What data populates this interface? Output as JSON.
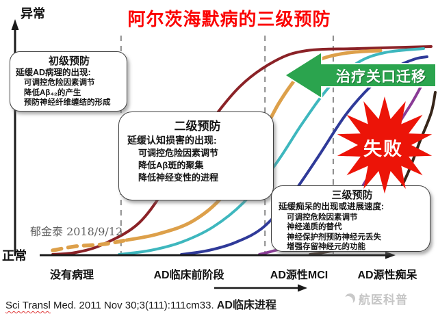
{
  "title": "阿尔茨海默病的三级预防",
  "axes": {
    "y_top_label": "异常",
    "y_bottom_label": "正常",
    "x_stage_labels": [
      "没有病理",
      "AD临床前阶段",
      "AD源性MCI",
      "AD源性痴呆"
    ]
  },
  "prevention_boxes": [
    {
      "title": "初级预防",
      "subtitle": "延缓AD病理的出现:",
      "items": [
        "可调控危险因素调节",
        "降低Aβ₄₂的产生",
        "预防神经纤维缠结的形成"
      ]
    },
    {
      "title": "二级预防",
      "subtitle": "延缓认知损害的出现:",
      "items": [
        "可调控危险因素调节",
        "降低Aβ斑的聚集",
        "降低神经变性的进程"
      ]
    },
    {
      "title": "三级预防",
      "subtitle": "延缓痴呆的出现或进展速度:",
      "items": [
        "可调控危险因素调节",
        "神经递质的替代",
        "神经保护剂预防神经元丢失",
        "增强存留神经元的功能"
      ]
    }
  ],
  "annotations": {
    "treatment_arrow_label": "治疗关口迁移",
    "failure_label": "失败",
    "author_watermark": "郁金泰 2018/9/12",
    "brand_watermark": "航医科普",
    "citation_underlined": "Sci Transl",
    "citation_rest": " Med. 2011 Nov 30;3(111):111cm33. ",
    "progression_label": "AD临床进程"
  },
  "colors": {
    "title_red": "#fb0202",
    "arrow_green": "#2ba44e",
    "burst_red": "#ec1408",
    "axis_black": "#1a1a1a",
    "boundary_gray": "#8a8a8a"
  },
  "chart_data": {
    "type": "line",
    "title": "阿尔茨海默病的三级预防",
    "xlabel": "AD临床进程",
    "ylabel_top": "异常",
    "ylabel_bottom": "正常",
    "x_range": [
      0,
      100
    ],
    "y_range": [
      0,
      100
    ],
    "grid": false,
    "legend": "none",
    "stages": [
      "没有病理",
      "AD临床前阶段",
      "AD源性MCI",
      "AD源性痴呆"
    ],
    "stage_boundaries_x": [
      20.5,
      57.4,
      74.9
    ],
    "series": [
      {
        "name": "curve-dark-red",
        "color": "#8b2227",
        "style": "solid",
        "width": 4,
        "points": [
          [
            3,
            0
          ],
          [
            9,
            1
          ],
          [
            16,
            5
          ],
          [
            25,
            15
          ],
          [
            33,
            35
          ],
          [
            42,
            60
          ],
          [
            51,
            81
          ],
          [
            60,
            93
          ],
          [
            68,
            98
          ],
          [
            81,
            99
          ],
          [
            100,
            100
          ]
        ]
      },
      {
        "name": "curve-orange-dashed-segment",
        "color": "#dda04a",
        "style": "dashed",
        "width": 5.5,
        "points": [
          [
            3,
            2
          ],
          [
            9,
            4
          ],
          [
            16,
            5
          ],
          [
            22,
            7
          ]
        ]
      },
      {
        "name": "curve-orange",
        "color": "#dda04a",
        "style": "solid",
        "width": 5,
        "points": [
          [
            22,
            7
          ],
          [
            30,
            10
          ],
          [
            39,
            16
          ],
          [
            47,
            29
          ],
          [
            55,
            52
          ],
          [
            61,
            73
          ],
          [
            67,
            88
          ],
          [
            72,
            94
          ],
          [
            79,
            97
          ],
          [
            87,
            98
          ]
        ]
      },
      {
        "name": "curve-teal",
        "color": "#3eb7be",
        "style": "solid",
        "width": 4,
        "points": [
          [
            20,
            0
          ],
          [
            28,
            2
          ],
          [
            36,
            6
          ],
          [
            44,
            13
          ],
          [
            52,
            25
          ],
          [
            60,
            43
          ],
          [
            67,
            63
          ],
          [
            74,
            81
          ],
          [
            81,
            92
          ],
          [
            88,
            97
          ],
          [
            98,
            99
          ]
        ]
      },
      {
        "name": "curve-blue",
        "color": "#2f3a99",
        "style": "solid",
        "width": 4,
        "points": [
          [
            36,
            0
          ],
          [
            43,
            2
          ],
          [
            50,
            6
          ],
          [
            57,
            13
          ],
          [
            64,
            28
          ],
          [
            71,
            47
          ],
          [
            78,
            67
          ],
          [
            85,
            82
          ],
          [
            91,
            90
          ],
          [
            96,
            94
          ],
          [
            99,
            95
          ]
        ]
      },
      {
        "name": "curve-purple",
        "color": "#8a3b96",
        "style": "solid",
        "width": 4,
        "points": [
          [
            56,
            0
          ],
          [
            62,
            3
          ],
          [
            68,
            7
          ],
          [
            75,
            15
          ],
          [
            80,
            26
          ],
          [
            85,
            41
          ],
          [
            90,
            58
          ],
          [
            95,
            73
          ],
          [
            98,
            83
          ],
          [
            100,
            87
          ]
        ]
      },
      {
        "name": "curve-dark-brown",
        "color": "#37261a",
        "style": "solid",
        "width": 4,
        "points": [
          [
            69,
            0
          ],
          [
            75,
            2
          ],
          [
            81,
            6
          ],
          [
            86,
            13
          ],
          [
            90,
            24
          ],
          [
            94,
            39
          ],
          [
            97,
            54
          ],
          [
            100,
            68
          ],
          [
            101,
            78
          ]
        ]
      }
    ]
  }
}
